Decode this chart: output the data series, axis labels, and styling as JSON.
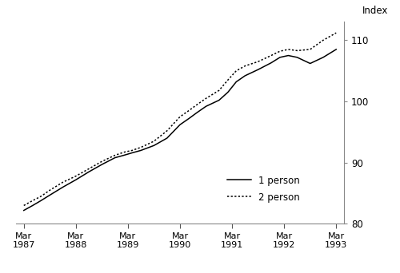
{
  "title": "",
  "ylabel": "Index",
  "ylim": [
    80,
    113
  ],
  "yticks": [
    80,
    90,
    100,
    110
  ],
  "xlim": [
    1987.1,
    1993.4
  ],
  "background_color": "#ffffff",
  "line_color_1person": "#000000",
  "line_color_2person": "#000000",
  "legend_labels": [
    "1 person",
    "2 person"
  ],
  "x_tick_labels": [
    "Mar\n1987",
    "Mar\n1988",
    "Mar\n1989",
    "Mar\n1990",
    "Mar\n1991",
    "Mar\n1992",
    "Mar\n1993"
  ],
  "x_tick_positions": [
    1987.25,
    1988.25,
    1989.25,
    1990.25,
    1991.25,
    1992.25,
    1993.25
  ],
  "one_person_x": [
    1987.25,
    1987.42,
    1987.58,
    1987.75,
    1988.0,
    1988.25,
    1988.5,
    1988.75,
    1989.0,
    1989.17,
    1989.33,
    1989.5,
    1989.75,
    1990.0,
    1990.25,
    1990.42,
    1990.58,
    1990.75,
    1991.0,
    1991.17,
    1991.33,
    1991.5,
    1991.75,
    1992.0,
    1992.17,
    1992.33,
    1992.5,
    1992.75,
    1993.0,
    1993.25
  ],
  "one_person_y": [
    82.2,
    83.0,
    83.8,
    84.7,
    86.0,
    87.2,
    88.5,
    89.7,
    90.8,
    91.2,
    91.6,
    92.0,
    92.8,
    94.0,
    96.2,
    97.2,
    98.2,
    99.2,
    100.2,
    101.5,
    103.2,
    104.2,
    105.2,
    106.3,
    107.2,
    107.5,
    107.2,
    106.2,
    107.2,
    108.5
  ],
  "two_person_x": [
    1987.25,
    1987.42,
    1987.58,
    1987.75,
    1988.0,
    1988.25,
    1988.5,
    1988.75,
    1989.0,
    1989.17,
    1989.33,
    1989.5,
    1989.75,
    1990.0,
    1990.25,
    1990.42,
    1990.58,
    1990.75,
    1991.0,
    1991.17,
    1991.33,
    1991.5,
    1991.75,
    1992.0,
    1992.17,
    1992.33,
    1992.5,
    1992.75,
    1993.0,
    1993.25
  ],
  "two_person_y": [
    83.0,
    83.8,
    84.5,
    85.5,
    86.8,
    87.8,
    89.0,
    90.2,
    91.2,
    91.7,
    92.0,
    92.5,
    93.5,
    95.2,
    97.5,
    98.5,
    99.5,
    100.5,
    101.8,
    103.5,
    105.0,
    105.8,
    106.5,
    107.5,
    108.2,
    108.5,
    108.3,
    108.5,
    110.0,
    111.2
  ]
}
